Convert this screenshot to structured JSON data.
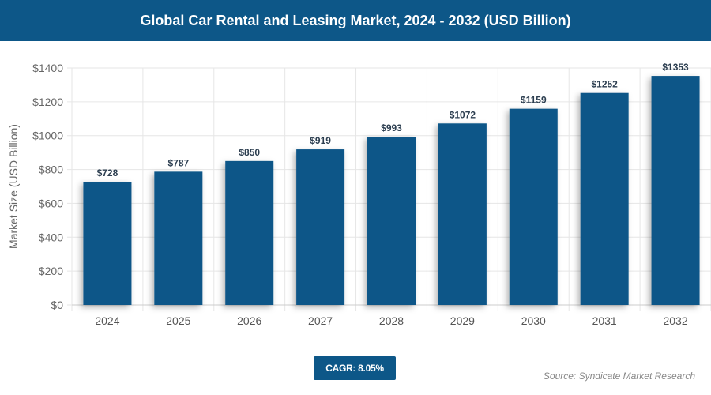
{
  "header": {
    "title": "Global Car Rental and Leasing Market, 2024 - 2032 (USD Billion)"
  },
  "chart_data": {
    "type": "bar",
    "title": "Global Car Rental and Leasing Market, 2024 - 2032 (USD Billion)",
    "xlabel": "",
    "ylabel": "Market Size (USD Billion)",
    "categories": [
      "2024",
      "2025",
      "2026",
      "2027",
      "2028",
      "2029",
      "2030",
      "2031",
      "2032"
    ],
    "values": [
      728,
      787,
      850,
      919,
      993,
      1072,
      1159,
      1252,
      1353
    ],
    "data_labels": [
      "$728",
      "$787",
      "$850",
      "$919",
      "$993",
      "$1072",
      "$1159",
      "$1252",
      "$1353"
    ],
    "ylim": [
      0,
      1400
    ],
    "yticks": [
      0,
      200,
      400,
      600,
      800,
      1000,
      1200,
      1400
    ],
    "ytick_labels": [
      "$0",
      "$200",
      "$400",
      "$600",
      "$800",
      "$1000",
      "$1200",
      "$1400"
    ],
    "grid": true,
    "bar_color": "#0d5788"
  },
  "footer": {
    "cagr": "CAGR: 8.05%",
    "source": "Source: Syndicate Market Research"
  }
}
